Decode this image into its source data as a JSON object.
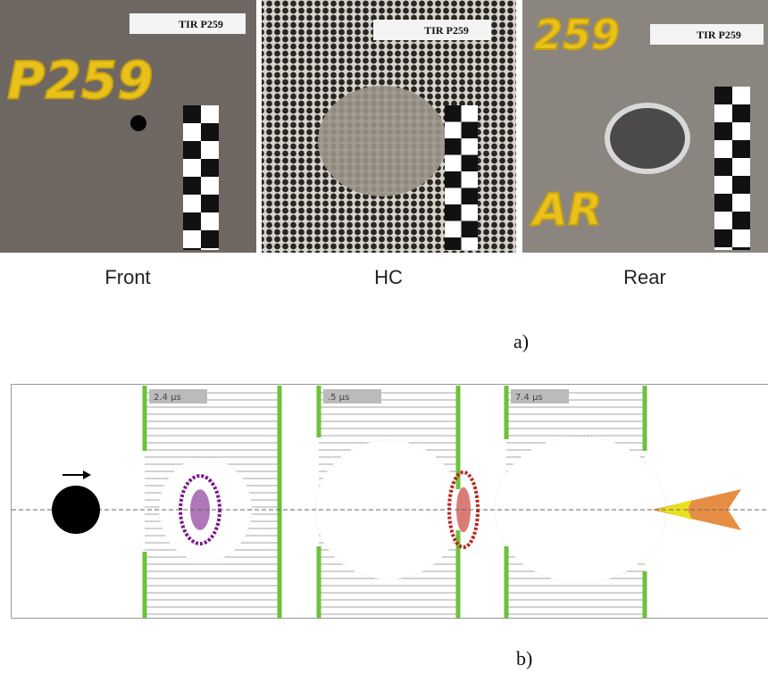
{
  "panels": [
    {
      "caption": "Front",
      "tag": "TIR P259",
      "markings": [
        "P259"
      ]
    },
    {
      "caption": "HC",
      "tag": "TIR P259",
      "markings": []
    },
    {
      "caption": "Rear",
      "tag": "TIR P259",
      "markings": [
        "259",
        "AR"
      ]
    }
  ],
  "label_a": "a)",
  "frames": [
    {
      "time": "2.4 µs"
    },
    {
      "time": ".5 µs"
    },
    {
      "time": "7.4 µs"
    }
  ],
  "label_b": "b)"
}
